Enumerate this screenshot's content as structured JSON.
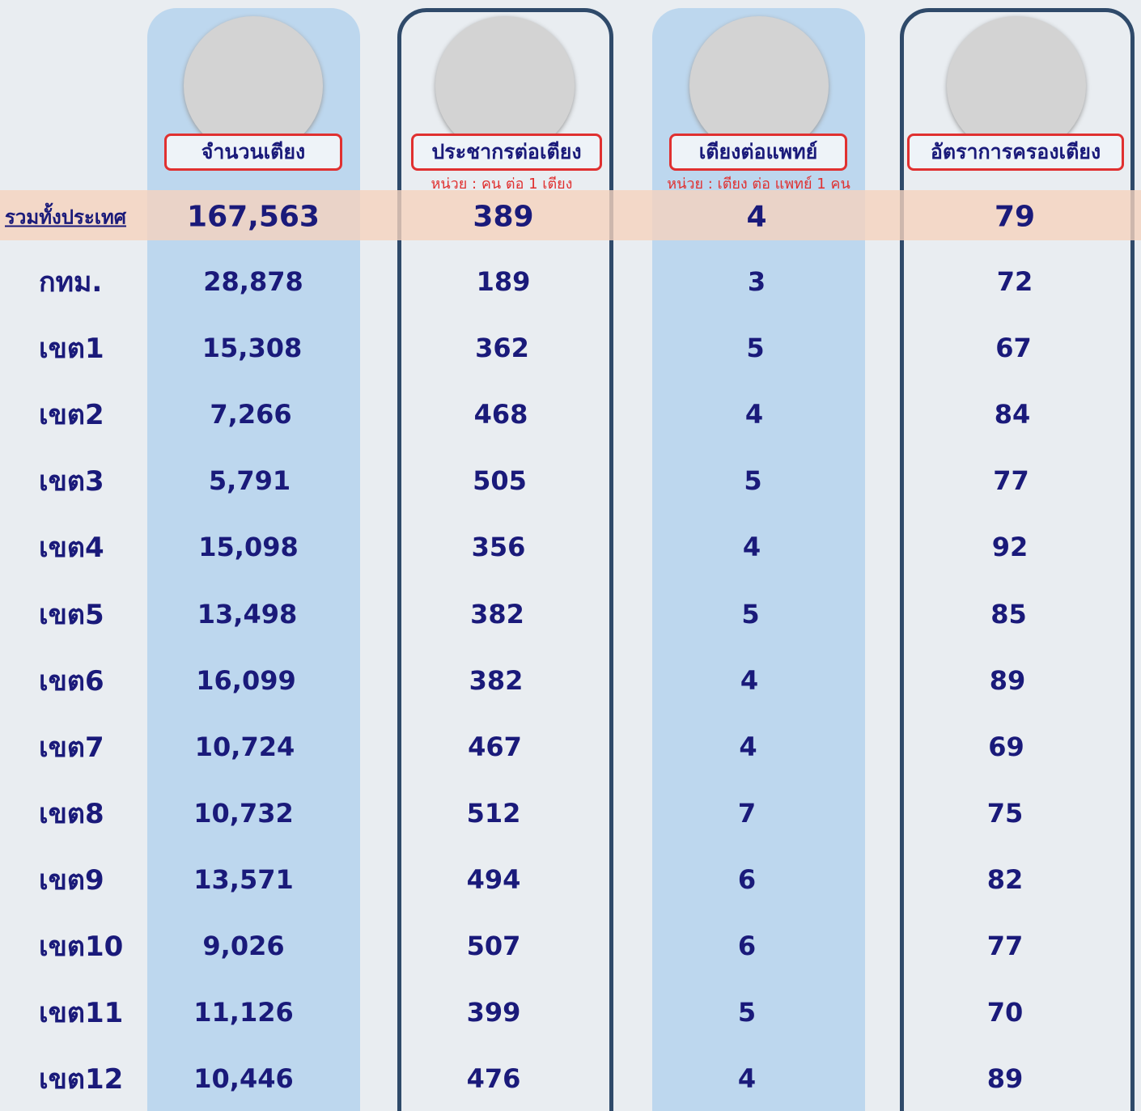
{
  "table": {
    "columns": [
      {
        "header": "จำนวนเตียง"
      },
      {
        "header": "ประชากรต่อเตียง",
        "unit": "หน่วย : คน ต่อ 1 เตียง"
      },
      {
        "header": "เตียงต่อแพทย์",
        "unit": "หน่วย : เตียง ต่อ แพทย์ 1 คน"
      },
      {
        "header": "อัตราการครองเตียง"
      }
    ],
    "total": {
      "label": "รวมทั้งประเทศ",
      "cells": [
        "167,563",
        "389",
        "4",
        "79"
      ]
    },
    "rows": [
      {
        "label": "กทม.",
        "cells": [
          "28,878",
          "189",
          "3",
          "72"
        ]
      },
      {
        "label": "เขต1",
        "cells": [
          "15,308",
          "362",
          "5",
          "67"
        ]
      },
      {
        "label": "เขต2",
        "cells": [
          "7,266",
          "468",
          "4",
          "84"
        ]
      },
      {
        "label": "เขต3",
        "cells": [
          "5,791",
          "505",
          "5",
          "77"
        ]
      },
      {
        "label": "เขต4",
        "cells": [
          "15,098",
          "356",
          "4",
          "92"
        ]
      },
      {
        "label": "เขต5",
        "cells": [
          "13,498",
          "382",
          "5",
          "85"
        ]
      },
      {
        "label": "เขต6",
        "cells": [
          "16,099",
          "382",
          "4",
          "89"
        ]
      },
      {
        "label": "เขต7",
        "cells": [
          "10,724",
          "467",
          "4",
          "69"
        ]
      },
      {
        "label": "เขต8",
        "cells": [
          "10,732",
          "512",
          "7",
          "75"
        ]
      },
      {
        "label": "เขต9",
        "cells": [
          "13,571",
          "494",
          "6",
          "82"
        ]
      },
      {
        "label": "เขต10",
        "cells": [
          "9,026",
          "507",
          "6",
          "77"
        ]
      },
      {
        "label": "เขต11",
        "cells": [
          "11,126",
          "399",
          "5",
          "70"
        ]
      },
      {
        "label": "เขต12",
        "cells": [
          "10,446",
          "476",
          "4",
          "89"
        ]
      }
    ]
  }
}
